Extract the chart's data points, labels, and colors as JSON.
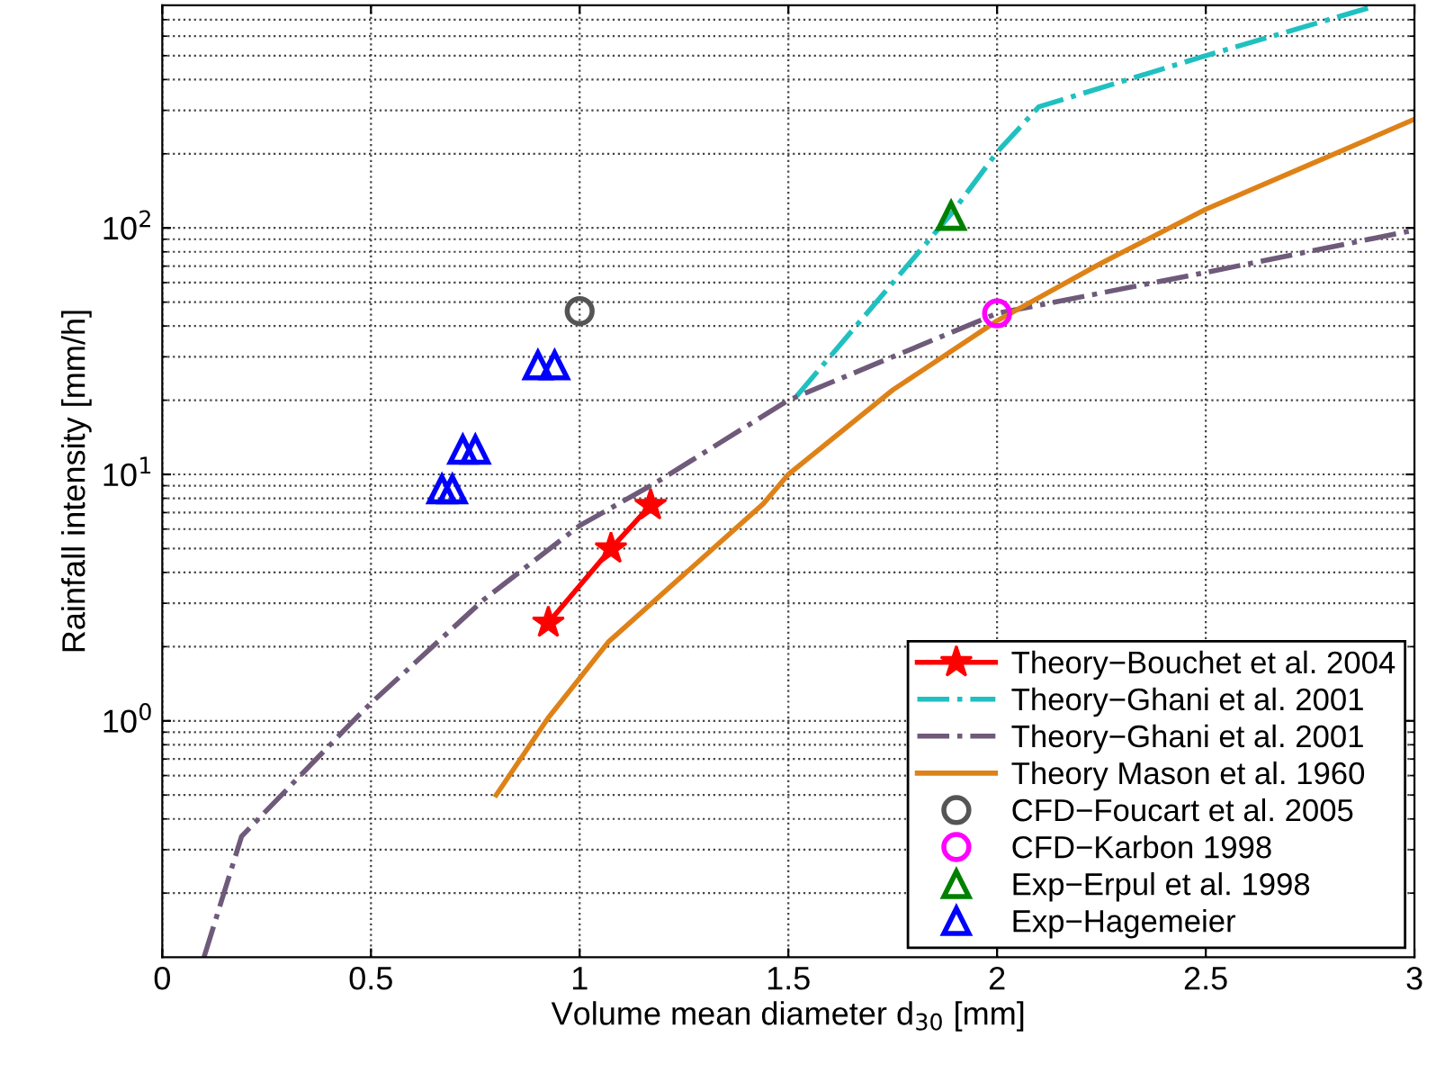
{
  "chart_data": {
    "type": "line",
    "xlabel": "Volume mean diameter d$_{30}$ [mm]",
    "ylabel": "Rainfall intensity [mm/h]",
    "log": "y",
    "xlim": [
      0,
      3
    ],
    "ylim": [
      0.11,
      800
    ],
    "xticks": [
      0,
      0.5,
      1,
      1.5,
      2,
      2.5,
      3
    ],
    "yticks": [
      {
        "value": 1,
        "label": "10$^{0}$"
      },
      {
        "value": 10,
        "label": "10$^{1}$"
      },
      {
        "value": 100,
        "label": "10$^{2}$"
      }
    ],
    "grid": true,
    "legend": "bottom right",
    "series": [
      {
        "name": "Theory−Bouchet et al. 2004",
        "color": "#ff0000",
        "marker": "star",
        "line_style": "solid",
        "x": [
          0.925,
          1.075,
          1.17
        ],
        "values": [
          2.5,
          5,
          7.5
        ]
      },
      {
        "name": "Theory−Ghani et al. 2001",
        "color": "#20c0c0",
        "marker": "none",
        "line_style": "dashdot",
        "x": [
          1.52,
          1.89,
          2.0,
          2.1,
          2.5,
          2.9
        ],
        "values": [
          20.8,
          114,
          203,
          310,
          500,
          790
        ]
      },
      {
        "name": "Theory−Ghani et al. 2001",
        "color": "#6f5a7a",
        "marker": "none",
        "line_style": "dashdot",
        "x": [
          0.1,
          0.19,
          0.45,
          0.5,
          0.77,
          1.0,
          1.18,
          1.5,
          2.0,
          2.5,
          3.0
        ],
        "values": [
          0.11,
          0.34,
          0.97,
          1.18,
          3.1,
          6.2,
          9.2,
          20,
          45,
          66,
          98
        ]
      },
      {
        "name": "Theory Mason et al. 1960",
        "color": "#de8218",
        "marker": "none",
        "line_style": "solid",
        "x": [
          0.8,
          0.925,
          1.07,
          1.44,
          1.5,
          1.75,
          2.0,
          2.25,
          2.5,
          2.75,
          3.0
        ],
        "values": [
          0.5,
          1.03,
          2.1,
          7.6,
          10,
          22,
          42,
          72,
          119,
          181,
          276
        ]
      },
      {
        "name": "CFD−Foucart et al. 2005",
        "type": "scatter",
        "color": "#555555",
        "marker": "circle",
        "x": [
          1.0
        ],
        "values": [
          46
        ]
      },
      {
        "name": "CFD−Karbon 1998",
        "type": "scatter",
        "color": "#ff00ff",
        "marker": "circle",
        "x": [
          2.0
        ],
        "values": [
          45
        ]
      },
      {
        "name": "Exp−Erpul et al. 1998",
        "type": "scatter",
        "color": "#008000",
        "marker": "triangle",
        "x": [
          1.89
        ],
        "values": [
          112
        ]
      },
      {
        "name": "Exp−Hagemeier",
        "type": "scatter",
        "color": "#0000ff",
        "marker": "triangle",
        "x": [
          0.9,
          0.94,
          0.72,
          0.75,
          0.67,
          0.695
        ],
        "values": [
          27.7,
          27.7,
          12.6,
          12.6,
          8.7,
          8.7
        ]
      }
    ]
  }
}
